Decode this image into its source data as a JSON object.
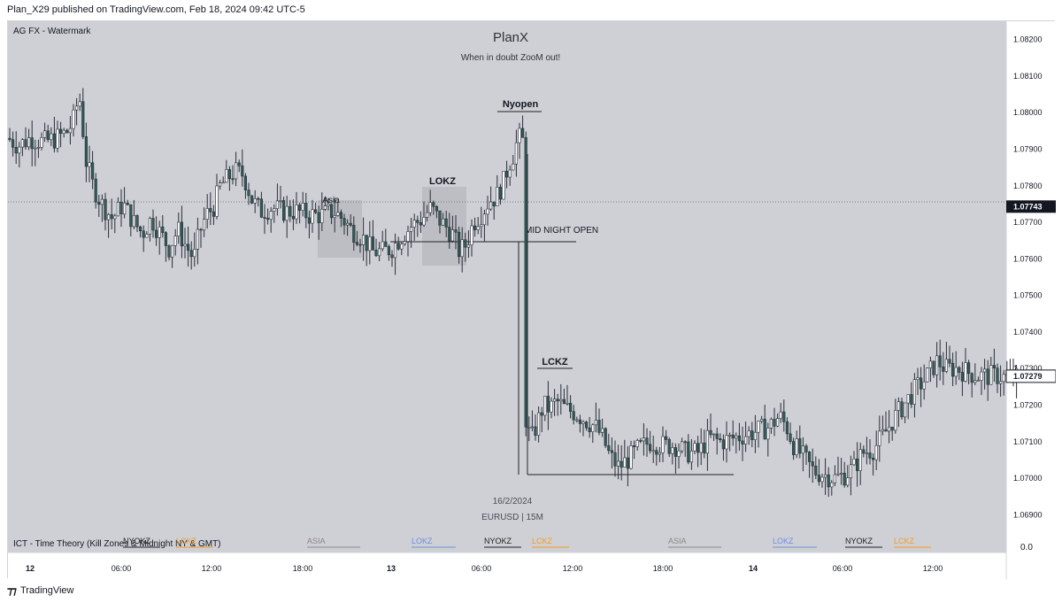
{
  "header": {
    "text": "Plan_X29 published on TradingView.com, Feb 18, 2024 09:42 UTC-5"
  },
  "footer": {
    "brand": "TradingView"
  },
  "watermark": {
    "top_left": "AG FX - Watermark",
    "title": "PlanX",
    "subtitle": "When in doubt ZooM out!",
    "date": "16/2/2024",
    "symbol": "EURUSD | 15M"
  },
  "indicator": {
    "name": "ICT - Time Theory (Kill Zones & Midnight NY & GMT)",
    "value": "0.0",
    "labels": [
      {
        "text": "NYOKZ",
        "color": "#222222"
      },
      {
        "text": "LCKZ",
        "color": "#f59a23"
      },
      {
        "text": "ASIA",
        "color": "#888888"
      },
      {
        "text": "LOKZ",
        "color": "#6f8fe0"
      },
      {
        "text": "NYOKZ",
        "color": "#222222"
      },
      {
        "text": "LCKZ",
        "color": "#f59a23"
      },
      {
        "text": "ASIA",
        "color": "#888888"
      },
      {
        "text": "LOKZ",
        "color": "#6f8fe0"
      },
      {
        "text": "NYOKZ",
        "color": "#222222"
      },
      {
        "text": "LCKZ",
        "color": "#f59a23"
      }
    ]
  },
  "colors": {
    "background": "#cfd0d5",
    "candle": "#2e5e58",
    "axis_bg": "#ffffff",
    "zone_box": "#bdbec3"
  },
  "chart_data": {
    "type": "candlestick",
    "ylim": [
      1.0685,
      1.0825
    ],
    "y_ticks": [
      "1.08200",
      "1.08100",
      "1.08000",
      "1.07900",
      "1.07800",
      "1.07700",
      "1.07600",
      "1.07500",
      "1.07400",
      "1.07300",
      "1.07200",
      "1.07100",
      "1.07000",
      "1.06900"
    ],
    "x_ticks": [
      "12",
      "06:00",
      "12:00",
      "18:00",
      "13",
      "06:00",
      "12:00",
      "18:00",
      "14",
      "06:00",
      "12:00"
    ],
    "price_labels": [
      {
        "text": "1.07743",
        "value": 1.07743,
        "style": "dark"
      },
      {
        "text": "1.07279",
        "value": 1.07279,
        "style": "light"
      }
    ],
    "annotations": [
      {
        "text": "Asia"
      },
      {
        "text": "LOKZ"
      },
      {
        "text": "Nyopen"
      },
      {
        "text": "MID NIGHT OPEN"
      },
      {
        "text": "LCKZ"
      }
    ],
    "price_path": [
      [
        0,
        1.0793
      ],
      [
        12,
        1.0791
      ],
      [
        25,
        1.0793
      ],
      [
        40,
        1.0792
      ],
      [
        55,
        1.0793
      ],
      [
        68,
        1.0795
      ],
      [
        76,
        1.0799
      ],
      [
        80,
        1.0806
      ],
      [
        84,
        1.0797
      ],
      [
        88,
        1.0787
      ],
      [
        96,
        1.078
      ],
      [
        106,
        1.0775
      ],
      [
        118,
        1.0771
      ],
      [
        130,
        1.0775
      ],
      [
        142,
        1.077
      ],
      [
        152,
        1.0767
      ],
      [
        162,
        1.0771
      ],
      [
        172,
        1.0767
      ],
      [
        182,
        1.0763
      ],
      [
        192,
        1.0768
      ],
      [
        200,
        1.0764
      ],
      [
        210,
        1.076
      ],
      [
        216,
        1.0767
      ],
      [
        224,
        1.0772
      ],
      [
        232,
        1.0774
      ],
      [
        240,
        1.078
      ],
      [
        248,
        1.0782
      ],
      [
        256,
        1.0784
      ],
      [
        266,
        1.0783
      ],
      [
        276,
        1.0776
      ],
      [
        286,
        1.0773
      ],
      [
        298,
        1.0774
      ],
      [
        312,
        1.0773
      ],
      [
        326,
        1.0773
      ],
      [
        340,
        1.0772
      ],
      [
        354,
        1.0772
      ],
      [
        368,
        1.0773
      ],
      [
        378,
        1.0771
      ],
      [
        388,
        1.0768
      ],
      [
        400,
        1.0766
      ],
      [
        412,
        1.0762
      ],
      [
        424,
        1.0762
      ],
      [
        434,
        1.0763
      ],
      [
        444,
        1.0766
      ],
      [
        456,
        1.0769
      ],
      [
        468,
        1.0771
      ],
      [
        478,
        1.0774
      ],
      [
        486,
        1.0771
      ],
      [
        494,
        1.0769
      ],
      [
        502,
        1.0767
      ],
      [
        510,
        1.0762
      ],
      [
        518,
        1.0764
      ],
      [
        526,
        1.077
      ],
      [
        534,
        1.0772
      ],
      [
        544,
        1.0776
      ],
      [
        552,
        1.0777
      ],
      [
        560,
        1.0781
      ],
      [
        566,
        1.0786
      ],
      [
        572,
        1.0789
      ],
      [
        576,
        1.0793
      ],
      [
        580,
        1.0793
      ],
      [
        584,
        1.0791
      ],
      [
        586,
        1.0718
      ],
      [
        592,
        1.0711
      ],
      [
        598,
        1.0715
      ],
      [
        605,
        1.072
      ],
      [
        612,
        1.0719
      ],
      [
        620,
        1.0721
      ],
      [
        630,
        1.0719
      ],
      [
        640,
        1.0718
      ],
      [
        652,
        1.0716
      ],
      [
        664,
        1.0714
      ],
      [
        672,
        1.0711
      ],
      [
        680,
        1.0706
      ],
      [
        690,
        1.0703
      ],
      [
        700,
        1.0705
      ],
      [
        712,
        1.0708
      ],
      [
        726,
        1.071
      ],
      [
        740,
        1.0709
      ],
      [
        754,
        1.0709
      ],
      [
        766,
        1.0707
      ],
      [
        780,
        1.0707
      ],
      [
        792,
        1.0711
      ],
      [
        806,
        1.071
      ],
      [
        820,
        1.0711
      ],
      [
        834,
        1.0712
      ],
      [
        848,
        1.0713
      ],
      [
        860,
        1.0714
      ],
      [
        872,
        1.0717
      ],
      [
        880,
        1.0714
      ],
      [
        888,
        1.0709
      ],
      [
        898,
        1.0706
      ],
      [
        910,
        1.0702
      ],
      [
        922,
        1.0701
      ],
      [
        934,
        1.07
      ],
      [
        946,
        1.0701
      ],
      [
        956,
        1.0703
      ],
      [
        966,
        1.0707
      ],
      [
        978,
        1.0708
      ],
      [
        990,
        1.0712
      ],
      [
        1000,
        1.0716
      ],
      [
        1012,
        1.072
      ],
      [
        1024,
        1.0724
      ],
      [
        1036,
        1.0727
      ],
      [
        1044,
        1.073
      ],
      [
        1050,
        1.0732
      ],
      [
        1060,
        1.073
      ],
      [
        1072,
        1.073
      ],
      [
        1084,
        1.0729
      ],
      [
        1096,
        1.0728
      ],
      [
        1108,
        1.0728
      ],
      [
        1120,
        1.0728
      ],
      [
        1134,
        1.0727
      ],
      [
        1144,
        1.0728
      ]
    ]
  }
}
